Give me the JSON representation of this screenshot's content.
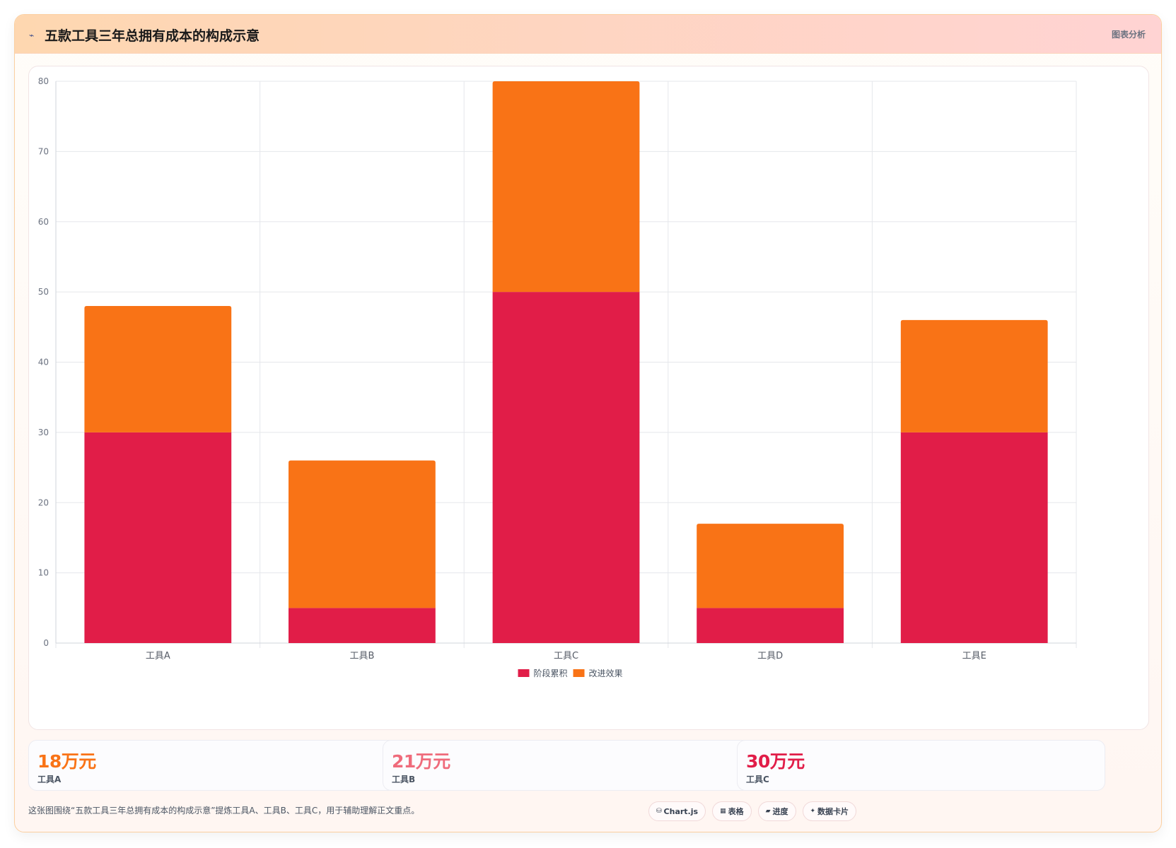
{
  "header": {
    "icon": "chart-line-icon",
    "title": "五款工具三年总拥有成本的构成示意",
    "tag": "图表分析"
  },
  "chart_data": {
    "type": "bar",
    "stacked": true,
    "categories": [
      "工具A",
      "工具B",
      "工具C",
      "工具D",
      "工具E"
    ],
    "series": [
      {
        "name": "阶段累积",
        "color": "#e11d48",
        "values": [
          30,
          5,
          50,
          5,
          30
        ]
      },
      {
        "name": "改进效果",
        "color": "#f97316",
        "values": [
          18,
          21,
          30,
          12,
          16
        ]
      }
    ],
    "ylim": [
      0,
      80
    ],
    "yticks": [
      0,
      10,
      20,
      30,
      40,
      50,
      60,
      70,
      80
    ],
    "grid": true,
    "legend": "bottom-center"
  },
  "stats": [
    {
      "value": "18万元",
      "label": "工具A",
      "color": "#f97316"
    },
    {
      "value": "21万元",
      "label": "工具B",
      "color": "#ef6b7b"
    },
    {
      "value": "30万元",
      "label": "工具C",
      "color": "#e11d48"
    }
  ],
  "footer": {
    "text": "这张图围绕“五款工具三年总拥有成本的构成示意”提炼工具A、工具B、工具C，用于辅助理解正文重点。",
    "chips": [
      {
        "icon": "database-icon",
        "glyph": "⛁",
        "label": "Chart.js"
      },
      {
        "icon": "table-icon",
        "glyph": "▦",
        "label": "表格"
      },
      {
        "icon": "progress-icon",
        "glyph": "▰",
        "label": "进度"
      },
      {
        "icon": "sparkle-icon",
        "glyph": "✦",
        "label": "数据卡片"
      }
    ]
  }
}
